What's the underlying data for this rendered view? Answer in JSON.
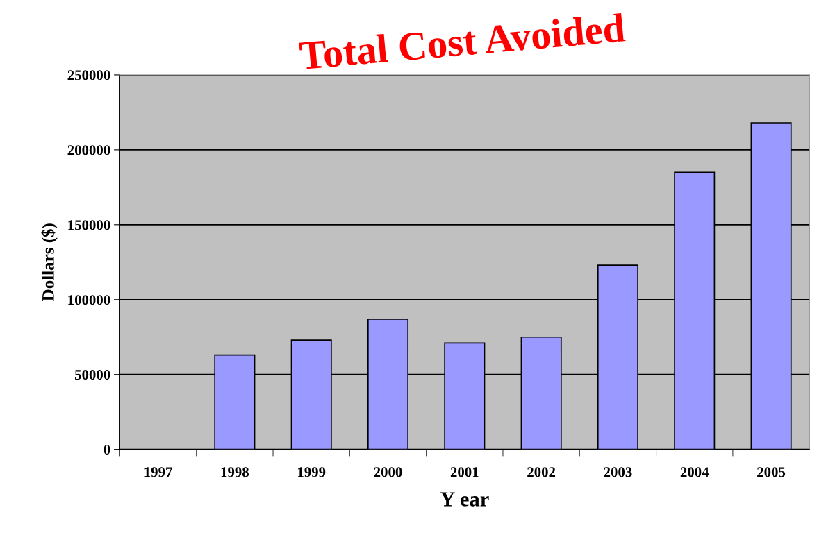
{
  "chart_data": {
    "type": "bar",
    "title": "Total Cost Avoided",
    "xlabel": "Y ear",
    "ylabel": "Dollars ($)",
    "categories": [
      "1997",
      "1998",
      "1999",
      "2000",
      "2001",
      "2002",
      "2003",
      "2004",
      "2005"
    ],
    "values": [
      null,
      63000,
      73000,
      87000,
      71000,
      75000,
      123000,
      185000,
      218000
    ],
    "color": "#9999ff",
    "ylim": [
      0,
      250000
    ],
    "yticks": [
      0,
      50000,
      100000,
      150000,
      200000,
      250000
    ],
    "grid": "y",
    "legend": false
  }
}
